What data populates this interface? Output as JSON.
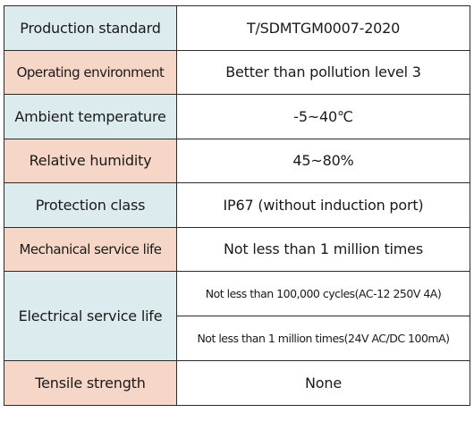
{
  "colors": {
    "label_blue": "#dcebed",
    "label_peach": "#f6d6c6",
    "border": "#2b2b2b"
  },
  "rows": [
    {
      "label": "Production standard",
      "value": "T/SDMTGM0007-2020"
    },
    {
      "label": "Operating environment",
      "value": "Better than pollution level 3"
    },
    {
      "label": "Ambient temperature",
      "value": "-5~40℃"
    },
    {
      "label": "Relative humidity",
      "value": "45~80%"
    },
    {
      "label": "Protection class",
      "value": "IP67 (without induction port)"
    },
    {
      "label": "Mechanical service life",
      "value": "Not less than 1 million times"
    },
    {
      "label": "Electrical service life",
      "values": [
        "Not less than 100,000 cycles(AC-12 250V 4A)",
        "Not less than 1 million times(24V AC/DC 100mA)"
      ]
    },
    {
      "label": "Tensile strength",
      "value": "None"
    }
  ]
}
